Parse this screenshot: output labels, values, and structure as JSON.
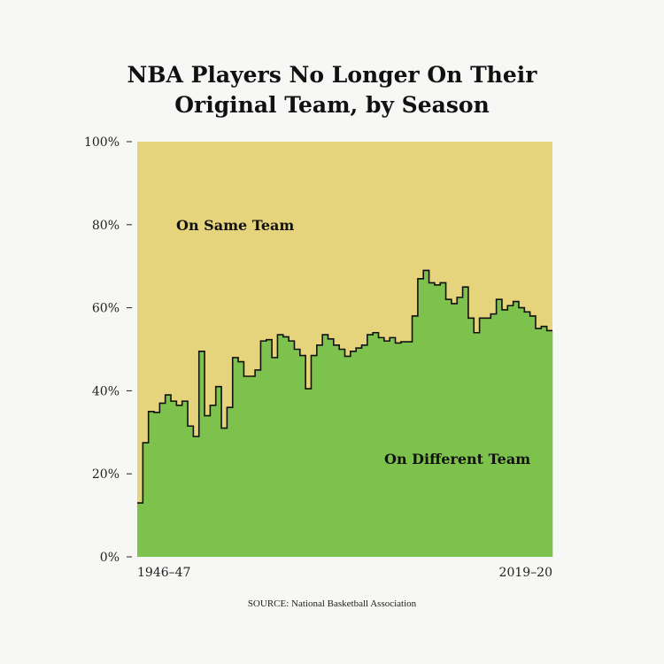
{
  "title_lines": [
    "NBA Players No Longer On Their",
    "Original Team, by Season"
  ],
  "source": "SOURCE: National Basketball Association",
  "colors": {
    "same_team": "#e6d47d",
    "different_team": "#7dc24c",
    "line": "#111111",
    "background": "#f7f7f5"
  },
  "chart_data": {
    "type": "area",
    "title": "NBA Players No Longer On Their Original Team, by Season",
    "xlabel": "",
    "ylabel": "",
    "x_tick_labels": [
      "1946–47",
      "2019–20"
    ],
    "y_ticks": [
      0,
      20,
      40,
      60,
      80,
      100
    ],
    "y_tick_labels": [
      "0%",
      "20%",
      "40%",
      "60%",
      "80%",
      "100%"
    ],
    "ylim": [
      0,
      100
    ],
    "region_labels": {
      "top": "On Same Team",
      "bottom": "On Different Team"
    },
    "series": [
      {
        "name": "On Different Team",
        "values": [
          13,
          27.5,
          35,
          34.8,
          37,
          39,
          37.5,
          36.5,
          37.5,
          31.5,
          29,
          49.5,
          34,
          36.5,
          41,
          31,
          36,
          48,
          47,
          43.5,
          43.5,
          45,
          52,
          52.3,
          48,
          53.5,
          53,
          52,
          50,
          48.5,
          40.5,
          48.5,
          51,
          53.5,
          52.5,
          51,
          50,
          48.3,
          49.5,
          50.3,
          51,
          53.5,
          54,
          52.8,
          52,
          52.8,
          51.5,
          51.8,
          51.8,
          58,
          67,
          69,
          66,
          65.5,
          66,
          62,
          61,
          62.5,
          65,
          57.5,
          54,
          57.5,
          57.5,
          58.5,
          62,
          59.5,
          60.5,
          61.5,
          60,
          59,
          58,
          55,
          55.5,
          54.5
        ]
      },
      {
        "name": "On Same Team",
        "values": "100 minus On Different Team"
      }
    ]
  }
}
